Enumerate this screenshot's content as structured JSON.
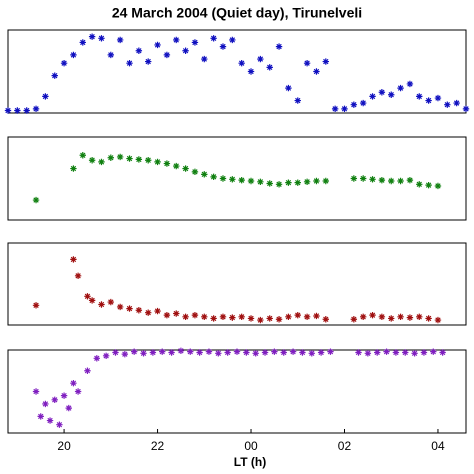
{
  "chart_data": [
    {
      "type": "scatter",
      "title": "24 March 2004 (Quiet day), Tirunelveli",
      "color": "#1010c0",
      "xlim": [
        18.8,
        28.6
      ],
      "ylim": [
        0,
        1
      ],
      "x": [
        18.8,
        19.0,
        19.2,
        19.4,
        19.6,
        19.8,
        20.0,
        20.2,
        20.4,
        20.6,
        20.8,
        21.0,
        21.2,
        21.4,
        21.6,
        21.8,
        22.0,
        22.2,
        22.4,
        22.6,
        22.8,
        23.0,
        23.2,
        23.4,
        23.6,
        23.8,
        24.0,
        24.2,
        24.4,
        24.6,
        24.8,
        25.0,
        25.2,
        25.4,
        25.6,
        25.8,
        26.0,
        26.2,
        26.4,
        26.6,
        26.8,
        27.0,
        27.2,
        27.4,
        27.6,
        27.8,
        28.0,
        28.2,
        28.4,
        28.6
      ],
      "values": [
        0.03,
        0.03,
        0.03,
        0.05,
        0.2,
        0.45,
        0.6,
        0.7,
        0.85,
        0.92,
        0.9,
        0.7,
        0.88,
        0.6,
        0.75,
        0.62,
        0.82,
        0.7,
        0.88,
        0.75,
        0.85,
        0.65,
        0.9,
        0.8,
        0.88,
        0.6,
        0.5,
        0.65,
        0.55,
        0.8,
        0.3,
        0.15,
        0.6,
        0.5,
        0.62,
        0.05,
        0.05,
        0.1,
        0.12,
        0.2,
        0.25,
        0.22,
        0.3,
        0.35,
        0.2,
        0.15,
        0.18,
        0.1,
        0.12,
        0.05
      ]
    },
    {
      "type": "scatter",
      "color": "#108010",
      "xlim": [
        18.8,
        28.6
      ],
      "ylim": [
        0,
        1
      ],
      "x": [
        19.4,
        20.2,
        20.4,
        20.6,
        20.8,
        21.0,
        21.2,
        21.4,
        21.6,
        21.8,
        22.0,
        22.2,
        22.4,
        22.6,
        22.8,
        23.0,
        23.2,
        23.4,
        23.6,
        23.8,
        24.0,
        24.2,
        24.4,
        24.6,
        24.8,
        25.0,
        25.2,
        25.4,
        25.6,
        26.2,
        26.4,
        26.6,
        26.8,
        27.0,
        27.2,
        27.4,
        27.6,
        27.8,
        28.0
      ],
      "values": [
        0.24,
        0.62,
        0.78,
        0.72,
        0.7,
        0.75,
        0.76,
        0.74,
        0.73,
        0.72,
        0.7,
        0.68,
        0.65,
        0.62,
        0.58,
        0.55,
        0.52,
        0.5,
        0.49,
        0.48,
        0.47,
        0.46,
        0.44,
        0.43,
        0.45,
        0.45,
        0.46,
        0.47,
        0.47,
        0.5,
        0.5,
        0.49,
        0.48,
        0.47,
        0.47,
        0.48,
        0.43,
        0.42,
        0.41
      ]
    },
    {
      "type": "scatter",
      "color": "#a01010",
      "xlim": [
        18.8,
        28.6
      ],
      "ylim": [
        0,
        1
      ],
      "x": [
        19.4,
        20.2,
        20.3,
        20.5,
        20.6,
        20.8,
        21.0,
        21.2,
        21.4,
        21.6,
        21.8,
        22.0,
        22.2,
        22.4,
        22.6,
        22.8,
        23.0,
        23.2,
        23.4,
        23.6,
        23.8,
        24.0,
        24.2,
        24.4,
        24.6,
        24.8,
        25.0,
        25.2,
        25.4,
        25.6,
        26.2,
        26.4,
        26.6,
        26.8,
        27.0,
        27.2,
        27.4,
        27.6,
        27.8,
        28.0
      ],
      "values": [
        0.24,
        0.8,
        0.6,
        0.35,
        0.3,
        0.25,
        0.28,
        0.22,
        0.2,
        0.18,
        0.15,
        0.17,
        0.12,
        0.14,
        0.1,
        0.12,
        0.1,
        0.08,
        0.1,
        0.09,
        0.1,
        0.08,
        0.06,
        0.08,
        0.07,
        0.1,
        0.12,
        0.1,
        0.11,
        0.07,
        0.07,
        0.1,
        0.12,
        0.1,
        0.08,
        0.1,
        0.09,
        0.1,
        0.08,
        0.06
      ]
    },
    {
      "type": "scatter",
      "color": "#8020c0",
      "xlabel": "LT (h)",
      "xlim": [
        18.8,
        28.6
      ],
      "ylim": [
        0,
        1
      ],
      "xticks": [
        20,
        22,
        {
          "value": 24,
          "label": "00"
        },
        {
          "value": 26,
          "label": "02"
        },
        {
          "value": 28,
          "label": "04"
        }
      ],
      "x": [
        19.4,
        19.5,
        19.6,
        19.7,
        19.8,
        19.9,
        20.0,
        20.1,
        20.2,
        20.3,
        20.5,
        20.7,
        20.9,
        21.1,
        21.3,
        21.5,
        21.7,
        21.9,
        22.1,
        22.3,
        22.5,
        22.7,
        22.9,
        23.1,
        23.3,
        23.5,
        23.7,
        23.9,
        24.1,
        24.3,
        24.5,
        24.7,
        24.9,
        25.1,
        25.3,
        25.5,
        25.7,
        26.3,
        26.5,
        26.7,
        26.9,
        27.1,
        27.3,
        27.5,
        27.7,
        27.9,
        28.1
      ],
      "values": [
        0.5,
        0.2,
        0.35,
        0.15,
        0.4,
        0.1,
        0.45,
        0.3,
        0.6,
        0.5,
        0.75,
        0.9,
        0.93,
        0.97,
        0.95,
        0.98,
        0.96,
        0.97,
        0.98,
        0.97,
        0.99,
        0.98,
        0.97,
        0.98,
        0.96,
        0.97,
        0.98,
        0.97,
        0.96,
        0.97,
        0.98,
        0.97,
        0.98,
        0.97,
        0.96,
        0.97,
        0.98,
        0.97,
        0.96,
        0.97,
        0.98,
        0.97,
        0.97,
        0.96,
        0.97,
        0.98,
        0.97
      ]
    }
  ]
}
